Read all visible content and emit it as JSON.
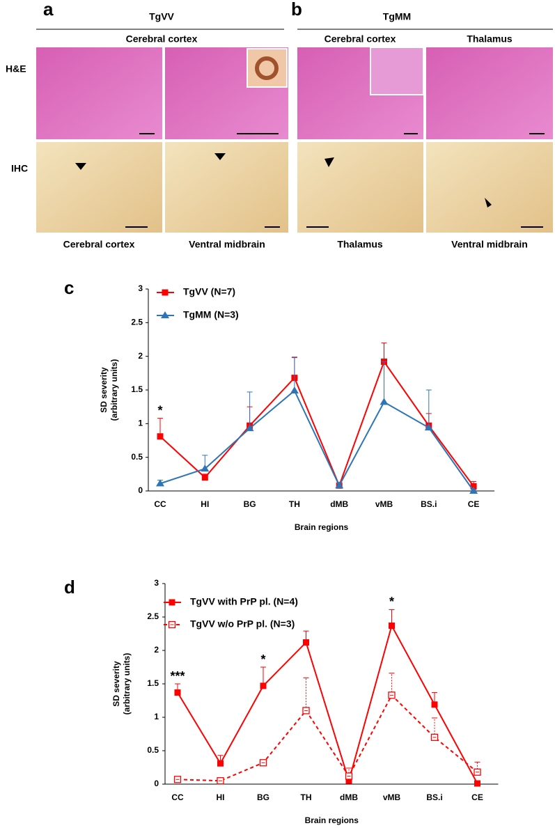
{
  "panels": {
    "a": {
      "letter": "a",
      "title": "TgVV",
      "top_label": "Cerebral cortex",
      "row_labels": [
        "H&E",
        "IHC"
      ],
      "bottom_labels": [
        "Cerebral cortex",
        "Ventral midbrain"
      ]
    },
    "b": {
      "letter": "b",
      "title": "TgMM",
      "top_labels": [
        "Cerebral cortex",
        "Thalamus"
      ],
      "bottom_labels": [
        "Thalamus",
        "Ventral midbrain"
      ]
    }
  },
  "chart_data": [
    {
      "type": "line",
      "letter": "c",
      "ylabel": [
        "SD severity",
        "(arbitrary units)"
      ],
      "xlabel": "Brain regions",
      "categories": [
        "CC",
        "HI",
        "BG",
        "TH",
        "dMB",
        "vMB",
        "BS.i",
        "CE"
      ],
      "ylim": [
        0,
        3
      ],
      "yticks": [
        0,
        0.5,
        1,
        1.5,
        2,
        2.5,
        3
      ],
      "series": [
        {
          "name": "TgVV (N=7)",
          "color": "#ff0000",
          "marker": "square",
          "linestyle": "solid",
          "values": [
            0.81,
            0.2,
            0.97,
            1.68,
            0.08,
            1.92,
            0.97,
            0.07
          ],
          "errors": [
            0.27,
            0.05,
            0.28,
            0.3,
            0.03,
            0.28,
            0.18,
            0.07
          ]
        },
        {
          "name": "TgMM (N=3)",
          "color": "#2e75b6",
          "marker": "triangle",
          "linestyle": "solid",
          "values": [
            0.11,
            0.33,
            0.93,
            1.49,
            0.08,
            1.32,
            0.94,
            0.0
          ],
          "errors": [
            0.05,
            0.2,
            0.54,
            0.5,
            0.03,
            0.6,
            0.56,
            0.02
          ]
        }
      ],
      "annotations": [
        {
          "text": "*",
          "x": "CC"
        }
      ]
    },
    {
      "type": "line",
      "letter": "d",
      "ylabel": [
        "SD severity",
        "(arbitrary units)"
      ],
      "xlabel": "Brain regions",
      "categories": [
        "CC",
        "HI",
        "BG",
        "TH",
        "dMB",
        "vMB",
        "BS.i",
        "CE"
      ],
      "ylim": [
        0,
        3
      ],
      "yticks": [
        0,
        0.5,
        1,
        1.5,
        2,
        2.5,
        3
      ],
      "series": [
        {
          "name": "TgVV with PrP pl. (N=4)",
          "color": "#ff0000",
          "marker": "square",
          "linestyle": "solid",
          "values": [
            1.37,
            0.31,
            1.47,
            2.12,
            0.05,
            2.37,
            1.19,
            0.01
          ],
          "errors": [
            0.13,
            0.12,
            0.28,
            0.17,
            0.05,
            0.24,
            0.18,
            0.01
          ]
        },
        {
          "name": "TgVV w/o PrP pl. (N=3)",
          "color": "#ff0000",
          "marker": "square-open",
          "linestyle": "dashed",
          "values": [
            0.07,
            0.05,
            0.32,
            1.1,
            0.12,
            1.33,
            0.7,
            0.18
          ],
          "errors": [
            0.03,
            0.02,
            0.03,
            0.49,
            0.12,
            0.33,
            0.29,
            0.15
          ]
        }
      ],
      "annotations": [
        {
          "text": "***",
          "x": "CC"
        },
        {
          "text": "*",
          "x": "BG"
        },
        {
          "text": "*",
          "x": "vMB"
        }
      ]
    }
  ]
}
